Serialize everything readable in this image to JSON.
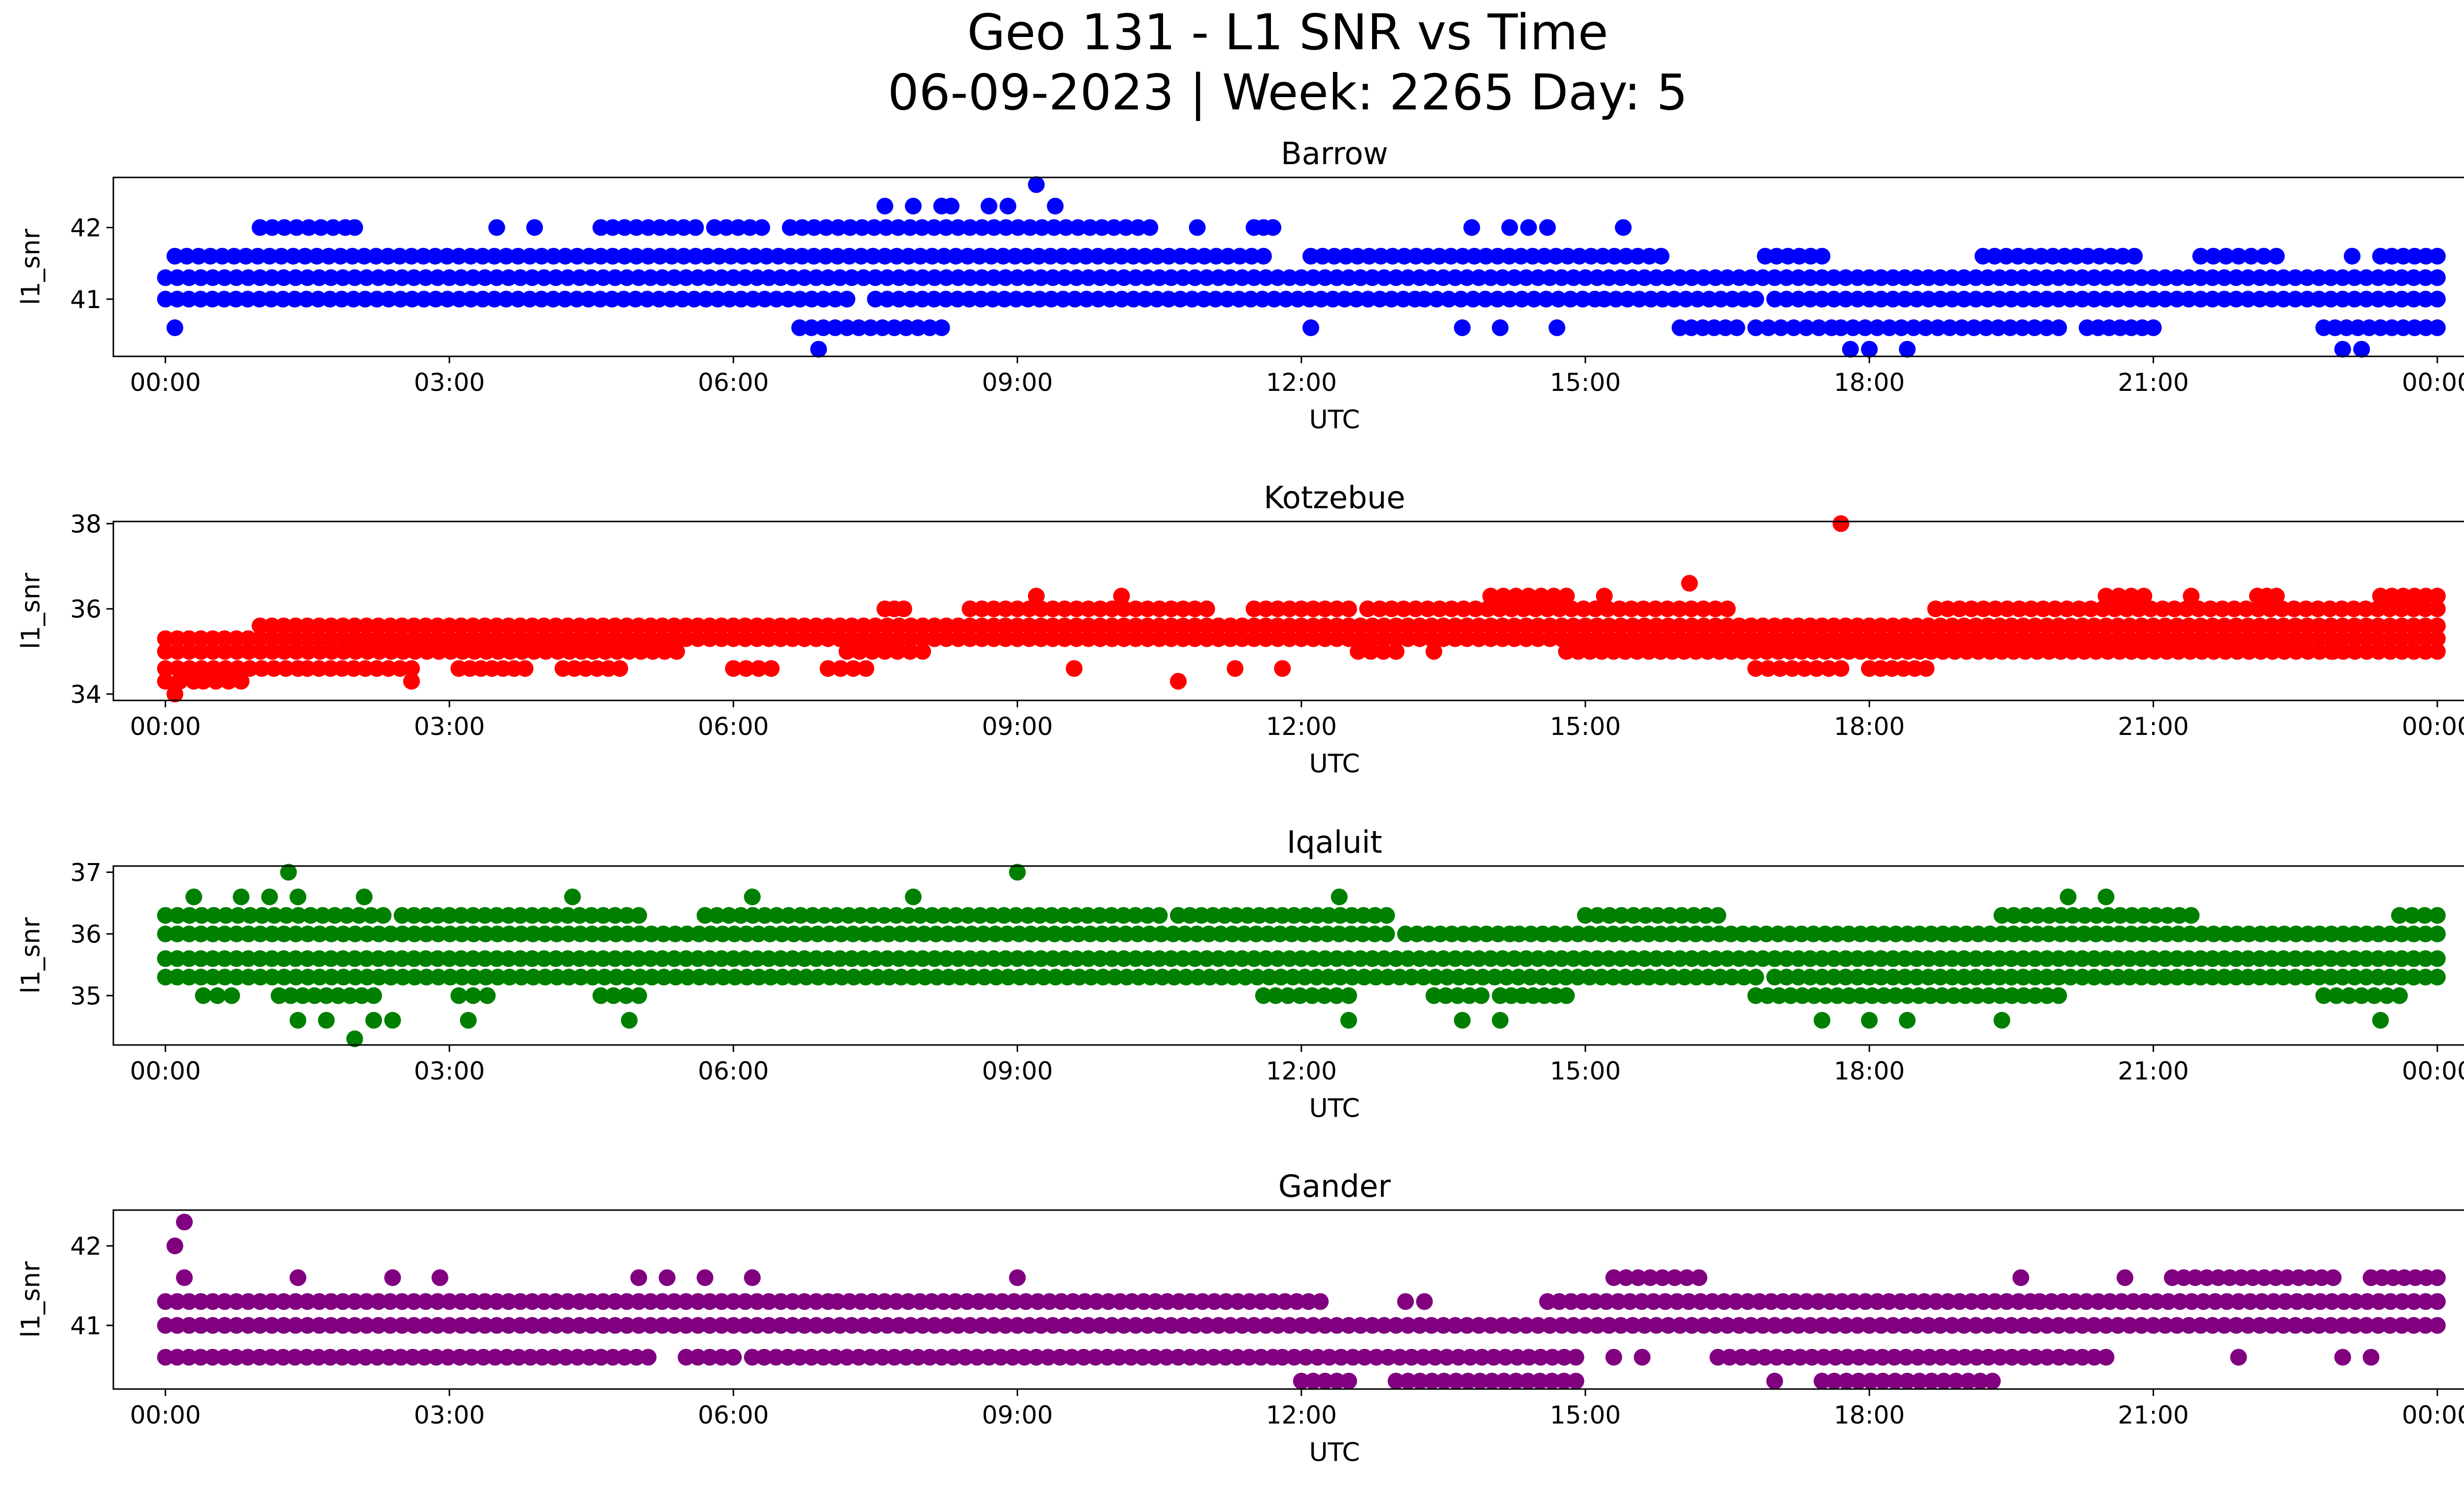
{
  "figure": {
    "title_line1": "Geo 131 - L1 SNR vs Time",
    "title_line2": "06-09-2023 | Week: 2265 Day: 5"
  },
  "chart_data": [
    {
      "type": "scatter",
      "title": "Barrow",
      "xlabel": "UTC",
      "ylabel": "l1_snr",
      "color": "#0000ff",
      "xlim_hours": [
        -0.55,
        25.25
      ],
      "ylim": [
        40.2,
        42.7
      ],
      "x_ticks": [
        "00:00",
        "03:00",
        "06:00",
        "09:00",
        "12:00",
        "15:00",
        "18:00",
        "21:00",
        "00:00"
      ],
      "y_ticks": [
        "41",
        "42"
      ],
      "y_tick_values": [
        41,
        42
      ],
      "bands": [
        {
          "y": 41.3,
          "ranges": [
            [
              0.0,
              24.0
            ]
          ]
        },
        {
          "y": 41.6,
          "ranges": [
            [
              0.1,
              11.6
            ],
            [
              12.1,
              15.8
            ],
            [
              16.9,
              17.5
            ],
            [
              19.2,
              20.8
            ],
            [
              21.5,
              22.3
            ],
            [
              23.4,
              24.0
            ]
          ]
        },
        {
          "y": 41.0,
          "ranges": [
            [
              0.0,
              7.2
            ],
            [
              7.5,
              13.2
            ],
            [
              13.3,
              15.1
            ],
            [
              15.2,
              16.8
            ],
            [
              17.0,
              24.0
            ]
          ]
        },
        {
          "y": 40.6,
          "ranges": [
            [
              6.7,
              8.2
            ],
            [
              16.0,
              16.6
            ],
            [
              16.8,
              17.6
            ],
            [
              17.7,
              20.0
            ],
            [
              20.3,
              21.0
            ],
            [
              22.8,
              24.0
            ]
          ]
        },
        {
          "y": 42.0,
          "ranges": [
            [
              1.0,
              1.9
            ],
            [
              4.6,
              5.6
            ],
            [
              5.8,
              6.3
            ],
            [
              6.6,
              10.4
            ],
            [
              11.5,
              11.7
            ]
          ]
        }
      ],
      "points": [
        [
          0.1,
          40.6
        ],
        [
          2.0,
          42.0
        ],
        [
          3.5,
          42.0
        ],
        [
          3.9,
          42.0
        ],
        [
          12.1,
          40.6
        ],
        [
          6.9,
          40.3
        ],
        [
          7.6,
          42.3
        ],
        [
          7.9,
          42.3
        ],
        [
          8.2,
          42.3
        ],
        [
          8.3,
          42.3
        ],
        [
          8.7,
          42.3
        ],
        [
          8.9,
          42.3
        ],
        [
          9.2,
          42.6
        ],
        [
          9.4,
          42.3
        ],
        [
          10.9,
          42.0
        ],
        [
          13.7,
          40.6
        ],
        [
          13.8,
          42.0
        ],
        [
          14.2,
          42.0
        ],
        [
          14.4,
          42.0
        ],
        [
          14.6,
          42.0
        ],
        [
          14.7,
          40.6
        ],
        [
          15.4,
          42.0
        ],
        [
          14.1,
          40.6
        ],
        [
          17.8,
          40.3
        ],
        [
          18.0,
          40.3
        ],
        [
          18.4,
          40.3
        ],
        [
          23.0,
          40.3
        ],
        [
          23.2,
          40.3
        ],
        [
          23.1,
          41.6
        ]
      ]
    },
    {
      "type": "scatter",
      "title": "Kotzebue",
      "xlabel": "UTC",
      "ylabel": "l1_snr",
      "color": "#ff0000",
      "xlim_hours": [
        -0.55,
        25.25
      ],
      "ylim": [
        33.85,
        38.05
      ],
      "x_ticks": [
        "00:00",
        "03:00",
        "06:00",
        "09:00",
        "12:00",
        "15:00",
        "18:00",
        "21:00",
        "00:00"
      ],
      "y_ticks": [
        "34",
        "36",
        "38"
      ],
      "y_tick_values": [
        34,
        36,
        38
      ],
      "bands": [
        {
          "y": 35.0,
          "ranges": [
            [
              0.0,
              5.4
            ],
            [
              7.2,
              8.0
            ],
            [
              12.6,
              13.0
            ],
            [
              14.8,
              24.0
            ]
          ]
        },
        {
          "y": 35.3,
          "ranges": [
            [
              0.0,
              24.0
            ]
          ]
        },
        {
          "y": 35.6,
          "ranges": [
            [
              1.0,
              16.5
            ],
            [
              16.5,
              24.0
            ]
          ]
        },
        {
          "y": 36.0,
          "ranges": [
            [
              7.6,
              7.8
            ],
            [
              8.5,
              11.0
            ],
            [
              11.5,
              12.5
            ],
            [
              12.7,
              16.5
            ],
            [
              18.7,
              24.0
            ]
          ]
        },
        {
          "y": 34.6,
          "ranges": [
            [
              0.0,
              1.4
            ],
            [
              1.5,
              2.6
            ],
            [
              3.1,
              3.8
            ],
            [
              4.2,
              4.8
            ],
            [
              6.0,
              6.4
            ],
            [
              7.0,
              7.4
            ],
            [
              16.8,
              17.7
            ],
            [
              18.0,
              18.6
            ]
          ]
        },
        {
          "y": 34.3,
          "ranges": [
            [
              0.0,
              0.3
            ],
            [
              0.4,
              0.8
            ]
          ]
        },
        {
          "y": 36.3,
          "ranges": [
            [
              14.0,
              14.8
            ],
            [
              20.5,
              20.9
            ],
            [
              22.1,
              22.3
            ],
            [
              23.4,
              24.0
            ]
          ]
        }
      ],
      "points": [
        [
          0.1,
          34.0
        ],
        [
          2.6,
          34.3
        ],
        [
          9.2,
          36.3
        ],
        [
          9.6,
          34.6
        ],
        [
          10.1,
          36.3
        ],
        [
          10.7,
          34.3
        ],
        [
          11.3,
          34.6
        ],
        [
          11.8,
          34.6
        ],
        [
          13.0,
          35.0
        ],
        [
          13.4,
          35.0
        ],
        [
          15.2,
          36.3
        ],
        [
          16.1,
          36.6
        ],
        [
          17.7,
          38.0
        ],
        [
          21.4,
          36.3
        ],
        [
          22.9,
          35.0
        ]
      ]
    },
    {
      "type": "scatter",
      "title": "Iqaluit",
      "xlabel": "UTC",
      "ylabel": "l1_snr",
      "color": "#008000",
      "xlim_hours": [
        -0.55,
        25.25
      ],
      "ylim": [
        34.2,
        37.1
      ],
      "x_ticks": [
        "00:00",
        "03:00",
        "06:00",
        "09:00",
        "12:00",
        "15:00",
        "18:00",
        "21:00",
        "00:00"
      ],
      "y_ticks": [
        "35",
        "36",
        "37"
      ],
      "y_tick_values": [
        35,
        36,
        37
      ],
      "bands": [
        {
          "y": 35.6,
          "ranges": [
            [
              0.0,
              24.0
            ]
          ]
        },
        {
          "y": 36.0,
          "ranges": [
            [
              0.0,
              12.9
            ],
            [
              13.1,
              14.2
            ],
            [
              14.3,
              24.0
            ]
          ]
        },
        {
          "y": 35.3,
          "ranges": [
            [
              0.0,
              16.8
            ],
            [
              17.0,
              24.0
            ]
          ]
        },
        {
          "y": 36.3,
          "ranges": [
            [
              0.0,
              2.3
            ],
            [
              2.5,
              5.0
            ],
            [
              5.7,
              10.5
            ],
            [
              10.7,
              12.9
            ],
            [
              15.0,
              16.4
            ],
            [
              19.4,
              21.4
            ],
            [
              23.6,
              24.0
            ]
          ]
        },
        {
          "y": 35.0,
          "ranges": [
            [
              0.4,
              0.7
            ],
            [
              1.2,
              2.2
            ],
            [
              3.1,
              3.4
            ],
            [
              4.6,
              5.0
            ],
            [
              11.6,
              12.5
            ],
            [
              13.4,
              13.9
            ],
            [
              14.1,
              14.8
            ],
            [
              16.8,
              20.0
            ],
            [
              22.8,
              23.6
            ]
          ]
        }
      ],
      "points": [
        [
          0.3,
          36.6
        ],
        [
          0.8,
          36.6
        ],
        [
          1.1,
          36.6
        ],
        [
          1.3,
          37.0
        ],
        [
          1.4,
          36.6
        ],
        [
          1.4,
          34.6
        ],
        [
          1.7,
          34.6
        ],
        [
          2.0,
          34.3
        ],
        [
          2.2,
          34.6
        ],
        [
          2.4,
          34.6
        ],
        [
          2.1,
          36.6
        ],
        [
          3.2,
          34.6
        ],
        [
          4.3,
          36.6
        ],
        [
          4.9,
          34.6
        ],
        [
          6.2,
          36.6
        ],
        [
          7.9,
          36.6
        ],
        [
          9.0,
          37.0
        ],
        [
          12.5,
          34.6
        ],
        [
          12.4,
          36.6
        ],
        [
          13.7,
          34.6
        ],
        [
          14.1,
          34.6
        ],
        [
          17.5,
          34.6
        ],
        [
          18.0,
          34.6
        ],
        [
          18.4,
          34.6
        ],
        [
          19.4,
          34.6
        ],
        [
          20.1,
          36.6
        ],
        [
          20.5,
          36.6
        ],
        [
          23.4,
          34.6
        ]
      ]
    },
    {
      "type": "scatter",
      "title": "Gander",
      "xlabel": "UTC",
      "ylabel": "l1_snr",
      "color": "#800080",
      "xlim_hours": [
        -0.55,
        25.25
      ],
      "ylim": [
        40.2,
        42.45
      ],
      "x_ticks": [
        "00:00",
        "03:00",
        "06:00",
        "09:00",
        "12:00",
        "15:00",
        "18:00",
        "21:00",
        "00:00"
      ],
      "y_ticks": [
        "41",
        "42"
      ],
      "y_tick_values": [
        41,
        42
      ],
      "bands": [
        {
          "y": 41.0,
          "ranges": [
            [
              0.0,
              24.0
            ]
          ]
        },
        {
          "y": 41.3,
          "ranges": [
            [
              0.0,
              7.0
            ],
            [
              7.1,
              12.2
            ],
            [
              14.6,
              19.7
            ],
            [
              19.8,
              24.0
            ]
          ]
        },
        {
          "y": 40.6,
          "ranges": [
            [
              0.0,
              5.1
            ],
            [
              5.5,
              6.0
            ],
            [
              6.2,
              11.7
            ],
            [
              11.8,
              14.9
            ],
            [
              16.4,
              20.5
            ]
          ]
        },
        {
          "y": 41.6,
          "ranges": [
            [
              15.3,
              16.2
            ],
            [
              21.2,
              22.9
            ],
            [
              23.3,
              24.0
            ]
          ]
        },
        {
          "y": 40.3,
          "ranges": [
            [
              12.0,
              12.5
            ],
            [
              13.0,
              14.9
            ],
            [
              17.5,
              19.3
            ]
          ]
        }
      ],
      "points": [
        [
          0.1,
          42.0
        ],
        [
          0.2,
          42.3
        ],
        [
          0.2,
          41.6
        ],
        [
          1.4,
          41.6
        ],
        [
          2.4,
          41.6
        ],
        [
          2.9,
          41.6
        ],
        [
          5.0,
          41.6
        ],
        [
          5.3,
          41.6
        ],
        [
          5.7,
          41.6
        ],
        [
          6.2,
          41.6
        ],
        [
          9.0,
          41.6
        ],
        [
          13.1,
          41.3
        ],
        [
          13.3,
          41.3
        ],
        [
          15.3,
          40.6
        ],
        [
          15.6,
          40.6
        ],
        [
          17.0,
          40.3
        ],
        [
          19.6,
          41.6
        ],
        [
          20.7,
          41.6
        ],
        [
          21.9,
          40.6
        ],
        [
          23.0,
          40.6
        ],
        [
          23.3,
          40.6
        ]
      ]
    }
  ]
}
